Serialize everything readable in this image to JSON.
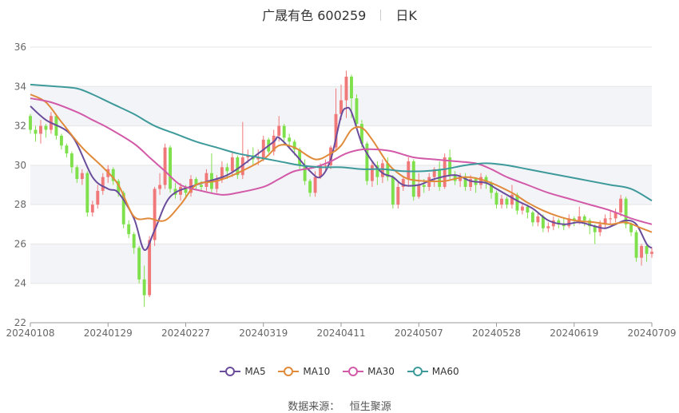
{
  "header": {
    "title": "广晟有色 600259",
    "period": "日K"
  },
  "source": {
    "label": "数据来源：",
    "name": "恒生聚源"
  },
  "colors": {
    "up": "#f07878",
    "down": "#7ee04a",
    "ma5": "#6a4c9c",
    "ma10": "#e08a3a",
    "ma30": "#d25aa8",
    "ma60": "#3e9a9a",
    "grid": "#e6e6e6",
    "band": "#f3f4f8"
  },
  "legend": [
    {
      "key": "ma5",
      "label": "MA5",
      "color": "#6a4c9c"
    },
    {
      "key": "ma10",
      "label": "MA10",
      "color": "#e08a3a"
    },
    {
      "key": "ma30",
      "label": "MA30",
      "color": "#d25aa8"
    },
    {
      "key": "ma60",
      "label": "MA60",
      "color": "#3e9a9a"
    }
  ],
  "chart_data": {
    "type": "candlestick",
    "title": "广晟有色 600259",
    "ylim": [
      22,
      36
    ],
    "yticks": [
      22,
      24,
      26,
      28,
      30,
      32,
      34,
      36
    ],
    "x_range": [
      0,
      120
    ],
    "x_ticks": [
      {
        "i": 0,
        "label": "20240108"
      },
      {
        "i": 15,
        "label": "20240129"
      },
      {
        "i": 30,
        "label": "20240227"
      },
      {
        "i": 45,
        "label": "20240319"
      },
      {
        "i": 60,
        "label": "20240411"
      },
      {
        "i": 75,
        "label": "20240507"
      },
      {
        "i": 90,
        "label": "20240528"
      },
      {
        "i": 105,
        "label": "20240619"
      },
      {
        "i": 120,
        "label": "20240709"
      }
    ],
    "candles": [
      [
        32.5,
        31.8,
        32.6,
        31.6
      ],
      [
        31.8,
        31.6,
        32.0,
        31.2
      ],
      [
        31.6,
        32.0,
        32.3,
        31.1
      ],
      [
        32.0,
        31.8,
        32.1,
        31.4
      ],
      [
        31.8,
        32.5,
        32.7,
        31.6
      ],
      [
        32.5,
        31.5,
        32.6,
        31.3
      ],
      [
        31.5,
        31.0,
        31.6,
        30.8
      ],
      [
        31.0,
        30.6,
        31.1,
        30.4
      ],
      [
        30.6,
        29.9,
        30.7,
        29.6
      ],
      [
        29.9,
        29.3,
        30.0,
        29.1
      ],
      [
        29.3,
        29.6,
        29.8,
        29.0
      ],
      [
        29.6,
        27.6,
        29.7,
        27.4
      ],
      [
        27.6,
        28.0,
        28.2,
        27.4
      ],
      [
        28.0,
        28.7,
        29.0,
        27.8
      ],
      [
        28.7,
        29.4,
        29.6,
        28.5
      ],
      [
        29.4,
        29.8,
        30.0,
        29.1
      ],
      [
        29.8,
        29.2,
        29.9,
        29.0
      ],
      [
        29.2,
        28.6,
        29.3,
        28.4
      ],
      [
        28.6,
        27.0,
        28.7,
        26.8
      ],
      [
        27.0,
        26.5,
        27.2,
        26.3
      ],
      [
        26.5,
        25.8,
        26.6,
        25.5
      ],
      [
        25.8,
        24.2,
        25.9,
        24.0
      ],
      [
        24.2,
        23.4,
        24.9,
        22.8
      ],
      [
        23.4,
        26.2,
        26.4,
        23.3
      ],
      [
        26.2,
        28.8,
        28.9,
        25.9
      ],
      [
        28.8,
        29.0,
        29.6,
        28.5
      ],
      [
        29.0,
        30.9,
        31.1,
        28.8
      ],
      [
        30.9,
        28.8,
        31.0,
        28.6
      ],
      [
        28.8,
        28.5,
        29.1,
        28.3
      ],
      [
        28.5,
        28.9,
        29.1,
        28.2
      ],
      [
        28.9,
        28.6,
        29.0,
        28.3
      ],
      [
        28.6,
        29.3,
        29.5,
        28.4
      ],
      [
        29.3,
        29.0,
        29.4,
        28.8
      ],
      [
        29.0,
        28.9,
        29.2,
        28.7
      ],
      [
        28.9,
        29.6,
        29.8,
        28.7
      ],
      [
        29.6,
        28.8,
        30.6,
        28.6
      ],
      [
        28.8,
        29.3,
        29.5,
        28.6
      ],
      [
        29.3,
        29.9,
        30.2,
        29.1
      ],
      [
        29.9,
        29.7,
        30.1,
        29.3
      ],
      [
        29.7,
        30.4,
        30.7,
        29.4
      ],
      [
        30.4,
        29.5,
        30.5,
        29.3
      ],
      [
        29.5,
        30.4,
        32.2,
        29.3
      ],
      [
        30.4,
        30.5,
        30.8,
        30.1
      ],
      [
        30.5,
        30.3,
        30.9,
        30.0
      ],
      [
        30.3,
        30.4,
        30.8,
        30.0
      ],
      [
        30.4,
        31.3,
        31.5,
        30.2
      ],
      [
        31.3,
        30.7,
        31.4,
        30.6
      ],
      [
        30.7,
        31.5,
        31.8,
        30.5
      ],
      [
        31.5,
        32.0,
        32.5,
        31.2
      ],
      [
        32.0,
        31.4,
        32.1,
        31.0
      ],
      [
        31.4,
        31.2,
        31.6,
        30.9
      ],
      [
        31.2,
        30.8,
        31.3,
        30.5
      ],
      [
        30.8,
        30.0,
        30.9,
        29.8
      ],
      [
        30.0,
        29.2,
        30.3,
        29.0
      ],
      [
        29.2,
        28.6,
        29.3,
        28.4
      ],
      [
        28.6,
        29.4,
        29.7,
        28.4
      ],
      [
        29.4,
        30.0,
        30.1,
        29.3
      ],
      [
        30.0,
        30.0,
        30.3,
        29.7
      ],
      [
        30.0,
        30.9,
        31.0,
        29.8
      ],
      [
        30.9,
        32.6,
        33.9,
        30.7
      ],
      [
        32.6,
        33.3,
        34.1,
        32.3
      ],
      [
        33.3,
        34.5,
        34.8,
        32.4
      ],
      [
        34.5,
        33.4,
        34.6,
        32.4
      ],
      [
        33.4,
        32.1,
        33.6,
        31.9
      ],
      [
        32.1,
        31.1,
        32.3,
        30.9
      ],
      [
        31.1,
        29.2,
        31.2,
        29.0
      ],
      [
        29.2,
        30.0,
        30.2,
        28.9
      ],
      [
        30.0,
        29.4,
        30.2,
        29.0
      ],
      [
        29.4,
        30.1,
        30.3,
        29.1
      ],
      [
        30.1,
        29.4,
        30.4,
        29.2
      ],
      [
        29.4,
        28.0,
        29.5,
        27.8
      ],
      [
        28.0,
        28.9,
        29.2,
        27.8
      ],
      [
        28.9,
        29.3,
        29.4,
        28.7
      ],
      [
        29.3,
        30.2,
        30.4,
        28.9
      ],
      [
        30.2,
        28.4,
        30.3,
        28.2
      ],
      [
        28.4,
        29.0,
        29.6,
        28.3
      ],
      [
        29.0,
        28.9,
        29.3,
        28.6
      ],
      [
        28.9,
        29.4,
        29.6,
        28.7
      ],
      [
        29.4,
        29.8,
        29.9,
        28.9
      ],
      [
        29.8,
        28.9,
        30.2,
        28.7
      ],
      [
        28.9,
        30.4,
        30.6,
        28.8
      ],
      [
        30.4,
        29.5,
        30.8,
        29.3
      ],
      [
        29.5,
        29.2,
        29.7,
        29.0
      ],
      [
        29.2,
        29.4,
        29.6,
        28.9
      ],
      [
        29.4,
        28.9,
        29.6,
        28.7
      ],
      [
        28.9,
        29.3,
        29.5,
        28.7
      ],
      [
        29.3,
        29.0,
        29.4,
        28.6
      ],
      [
        29.0,
        29.4,
        29.6,
        28.8
      ],
      [
        29.4,
        29.1,
        29.5,
        28.8
      ],
      [
        29.1,
        28.6,
        29.2,
        28.3
      ],
      [
        28.6,
        28.0,
        28.7,
        27.8
      ],
      [
        28.0,
        28.3,
        28.5,
        27.8
      ],
      [
        28.3,
        28.0,
        28.4,
        27.8
      ],
      [
        28.0,
        28.5,
        29.0,
        27.8
      ],
      [
        28.5,
        27.7,
        28.6,
        27.5
      ],
      [
        27.7,
        27.9,
        28.1,
        27.5
      ],
      [
        27.9,
        27.6,
        28.0,
        27.3
      ],
      [
        27.6,
        27.1,
        27.7,
        26.9
      ],
      [
        27.1,
        27.4,
        27.6,
        26.9
      ],
      [
        27.4,
        26.8,
        27.5,
        26.6
      ],
      [
        26.8,
        26.9,
        27.1,
        26.6
      ],
      [
        26.9,
        27.2,
        27.4,
        26.7
      ],
      [
        27.2,
        27.0,
        27.3,
        26.8
      ],
      [
        27.0,
        26.9,
        27.3,
        26.7
      ],
      [
        26.9,
        27.3,
        27.5,
        26.8
      ],
      [
        27.3,
        27.2,
        27.4,
        26.9
      ],
      [
        27.2,
        27.4,
        27.9,
        27.0
      ],
      [
        27.4,
        27.2,
        27.5,
        26.9
      ],
      [
        27.2,
        26.9,
        27.3,
        26.5
      ],
      [
        26.9,
        26.6,
        27.0,
        26.0
      ],
      [
        26.6,
        27.0,
        27.2,
        26.4
      ],
      [
        27.0,
        27.3,
        27.5,
        26.8
      ],
      [
        27.3,
        27.3,
        27.7,
        27.0
      ],
      [
        27.3,
        27.6,
        27.8,
        27.1
      ],
      [
        27.6,
        28.3,
        28.5,
        27.4
      ],
      [
        28.3,
        27.0,
        28.4,
        26.8
      ],
      [
        27.0,
        26.6,
        27.1,
        26.4
      ],
      [
        26.6,
        25.3,
        26.7,
        25.1
      ],
      [
        25.3,
        25.9,
        26.0,
        24.9
      ],
      [
        25.9,
        25.5,
        26.0,
        25.1
      ],
      [
        25.5,
        25.6,
        25.8,
        25.3
      ]
    ],
    "series": [
      {
        "name": "MA5",
        "points": [
          [
            0,
            33.0
          ],
          [
            3,
            32.3
          ],
          [
            8,
            31.5
          ],
          [
            12,
            29.4
          ],
          [
            15,
            28.8
          ],
          [
            17,
            28.6
          ],
          [
            20,
            27.3
          ],
          [
            22,
            25.7
          ],
          [
            24,
            26.7
          ],
          [
            27,
            28.4
          ],
          [
            32,
            29.0
          ],
          [
            38,
            29.5
          ],
          [
            43,
            30.4
          ],
          [
            47,
            31.2
          ],
          [
            48,
            31.4
          ],
          [
            51,
            30.6
          ],
          [
            54,
            29.7
          ],
          [
            56,
            29.4
          ],
          [
            58,
            30.3
          ],
          [
            60,
            32.5
          ],
          [
            61,
            32.9
          ],
          [
            62,
            32.7
          ],
          [
            64,
            31.1
          ],
          [
            66,
            30.2
          ],
          [
            68,
            29.6
          ],
          [
            70,
            29.4
          ],
          [
            72,
            29.0
          ],
          [
            75,
            29.0
          ],
          [
            78,
            29.3
          ],
          [
            82,
            29.5
          ],
          [
            85,
            29.2
          ],
          [
            88,
            29.1
          ],
          [
            90,
            28.8
          ],
          [
            94,
            28.2
          ],
          [
            97,
            27.8
          ],
          [
            100,
            27.2
          ],
          [
            103,
            27.0
          ],
          [
            106,
            27.1
          ],
          [
            109,
            26.9
          ],
          [
            111,
            26.8
          ],
          [
            113,
            27.0
          ],
          [
            115,
            27.2
          ],
          [
            117,
            27.0
          ],
          [
            119,
            26.0
          ],
          [
            120,
            25.8
          ]
        ]
      },
      {
        "name": "MA10",
        "points": [
          [
            0,
            33.6
          ],
          [
            3,
            33.2
          ],
          [
            6,
            32.2
          ],
          [
            10,
            30.9
          ],
          [
            14,
            29.9
          ],
          [
            17,
            29.0
          ],
          [
            20,
            27.4
          ],
          [
            23,
            27.3
          ],
          [
            26,
            27.2
          ],
          [
            29,
            28.0
          ],
          [
            32,
            29.0
          ],
          [
            36,
            29.2
          ],
          [
            40,
            29.6
          ],
          [
            45,
            30.3
          ],
          [
            48,
            31.0
          ],
          [
            51,
            30.9
          ],
          [
            55,
            30.3
          ],
          [
            58,
            30.6
          ],
          [
            60,
            31.0
          ],
          [
            62,
            31.8
          ],
          [
            64,
            31.9
          ],
          [
            66,
            31.3
          ],
          [
            69,
            30.1
          ],
          [
            71,
            29.6
          ],
          [
            73,
            29.3
          ],
          [
            76,
            29.2
          ],
          [
            80,
            29.2
          ],
          [
            84,
            29.4
          ],
          [
            88,
            29.2
          ],
          [
            93,
            28.6
          ],
          [
            96,
            28.1
          ],
          [
            99,
            27.7
          ],
          [
            102,
            27.4
          ],
          [
            105,
            27.2
          ],
          [
            109,
            27.1
          ],
          [
            112,
            27.0
          ],
          [
            115,
            27.1
          ],
          [
            118,
            26.8
          ],
          [
            120,
            26.6
          ]
        ]
      },
      {
        "name": "MA30",
        "points": [
          [
            0,
            33.4
          ],
          [
            4,
            33.2
          ],
          [
            9,
            32.7
          ],
          [
            12,
            32.3
          ],
          [
            15,
            31.9
          ],
          [
            20,
            31.1
          ],
          [
            23,
            30.4
          ],
          [
            26,
            29.7
          ],
          [
            29,
            29.0
          ],
          [
            33,
            28.7
          ],
          [
            37,
            28.5
          ],
          [
            40,
            28.6
          ],
          [
            45,
            28.9
          ],
          [
            48,
            29.3
          ],
          [
            51,
            29.7
          ],
          [
            55,
            29.9
          ],
          [
            58,
            30.2
          ],
          [
            61,
            30.6
          ],
          [
            64,
            30.8
          ],
          [
            67,
            30.8
          ],
          [
            70,
            30.7
          ],
          [
            74,
            30.4
          ],
          [
            78,
            30.3
          ],
          [
            82,
            30.2
          ],
          [
            86,
            30.1
          ],
          [
            89,
            29.8
          ],
          [
            92,
            29.4
          ],
          [
            96,
            29.0
          ],
          [
            100,
            28.6
          ],
          [
            104,
            28.3
          ],
          [
            108,
            28.0
          ],
          [
            112,
            27.7
          ],
          [
            116,
            27.3
          ],
          [
            120,
            27.0
          ]
        ]
      },
      {
        "name": "MA60",
        "points": [
          [
            0,
            34.1
          ],
          [
            5,
            34.0
          ],
          [
            9,
            33.9
          ],
          [
            12,
            33.6
          ],
          [
            16,
            33.1
          ],
          [
            20,
            32.6
          ],
          [
            24,
            32.0
          ],
          [
            28,
            31.6
          ],
          [
            32,
            31.2
          ],
          [
            36,
            30.9
          ],
          [
            40,
            30.6
          ],
          [
            44,
            30.4
          ],
          [
            48,
            30.2
          ],
          [
            52,
            30.0
          ],
          [
            56,
            29.9
          ],
          [
            60,
            29.9
          ],
          [
            64,
            29.8
          ],
          [
            68,
            29.8
          ],
          [
            72,
            29.7
          ],
          [
            76,
            29.7
          ],
          [
            80,
            29.8
          ],
          [
            84,
            30.0
          ],
          [
            88,
            30.1
          ],
          [
            92,
            30.0
          ],
          [
            96,
            29.8
          ],
          [
            100,
            29.6
          ],
          [
            104,
            29.4
          ],
          [
            108,
            29.2
          ],
          [
            112,
            29.0
          ],
          [
            116,
            28.8
          ],
          [
            120,
            28.2
          ]
        ]
      }
    ]
  }
}
